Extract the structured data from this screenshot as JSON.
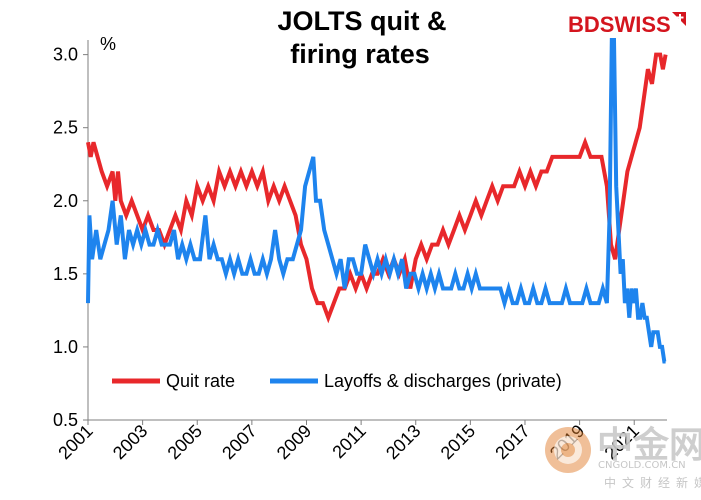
{
  "chart_data": {
    "type": "line",
    "title": [
      "JOLTS quit &",
      "firing rates"
    ],
    "ylabel": "%",
    "xlabel": "",
    "ylim": [
      0.5,
      3.1
    ],
    "xlim": [
      2001,
      2022.2
    ],
    "yticks": [
      {
        "value": 0.5,
        "label": "0.5"
      },
      {
        "value": 1.0,
        "label": "1.0"
      },
      {
        "value": 1.5,
        "label": "1.5"
      },
      {
        "value": 2.0,
        "label": "2.0"
      },
      {
        "value": 2.5,
        "label": "2.5"
      },
      {
        "value": 3.0,
        "label": "3.0"
      }
    ],
    "xticks": [
      {
        "value": 2001,
        "label": "2001"
      },
      {
        "value": 2003,
        "label": "2003"
      },
      {
        "value": 2005,
        "label": "2005"
      },
      {
        "value": 2007,
        "label": "2007"
      },
      {
        "value": 2009,
        "label": "2009"
      },
      {
        "value": 2011,
        "label": "2011"
      },
      {
        "value": 2013,
        "label": "2013"
      },
      {
        "value": 2015,
        "label": "2015"
      },
      {
        "value": 2017,
        "label": "2017"
      },
      {
        "value": 2019,
        "label": "2019"
      },
      {
        "value": 2021,
        "label": "2021"
      }
    ],
    "grid": false,
    "legend_position": "bottom",
    "series": [
      {
        "name": "Quit rate",
        "color": "#e8282b",
        "points": [
          [
            2001.0,
            2.4
          ],
          [
            2001.1,
            2.3
          ],
          [
            2001.2,
            2.4
          ],
          [
            2001.35,
            2.3
          ],
          [
            2001.5,
            2.2
          ],
          [
            2001.7,
            2.1
          ],
          [
            2001.9,
            2.2
          ],
          [
            2002.0,
            2.0
          ],
          [
            2002.1,
            2.2
          ],
          [
            2002.2,
            2.0
          ],
          [
            2002.4,
            1.9
          ],
          [
            2002.6,
            2.0
          ],
          [
            2002.8,
            1.9
          ],
          [
            2003.0,
            1.8
          ],
          [
            2003.2,
            1.9
          ],
          [
            2003.4,
            1.8
          ],
          [
            2003.6,
            1.8
          ],
          [
            2003.8,
            1.7
          ],
          [
            2004.0,
            1.8
          ],
          [
            2004.2,
            1.9
          ],
          [
            2004.4,
            1.8
          ],
          [
            2004.6,
            2.0
          ],
          [
            2004.8,
            1.9
          ],
          [
            2005.0,
            2.1
          ],
          [
            2005.2,
            2.0
          ],
          [
            2005.4,
            2.1
          ],
          [
            2005.6,
            2.0
          ],
          [
            2005.8,
            2.2
          ],
          [
            2006.0,
            2.1
          ],
          [
            2006.2,
            2.2
          ],
          [
            2006.4,
            2.1
          ],
          [
            2006.6,
            2.2
          ],
          [
            2006.8,
            2.1
          ],
          [
            2007.0,
            2.2
          ],
          [
            2007.2,
            2.1
          ],
          [
            2007.4,
            2.2
          ],
          [
            2007.6,
            2.0
          ],
          [
            2007.8,
            2.1
          ],
          [
            2008.0,
            2.0
          ],
          [
            2008.2,
            2.1
          ],
          [
            2008.4,
            2.0
          ],
          [
            2008.6,
            1.9
          ],
          [
            2008.8,
            1.7
          ],
          [
            2009.0,
            1.6
          ],
          [
            2009.2,
            1.4
          ],
          [
            2009.4,
            1.3
          ],
          [
            2009.6,
            1.3
          ],
          [
            2009.8,
            1.2
          ],
          [
            2010.0,
            1.3
          ],
          [
            2010.2,
            1.4
          ],
          [
            2010.4,
            1.4
          ],
          [
            2010.6,
            1.5
          ],
          [
            2010.8,
            1.4
          ],
          [
            2011.0,
            1.5
          ],
          [
            2011.2,
            1.4
          ],
          [
            2011.4,
            1.5
          ],
          [
            2011.6,
            1.5
          ],
          [
            2011.8,
            1.6
          ],
          [
            2012.0,
            1.5
          ],
          [
            2012.2,
            1.6
          ],
          [
            2012.4,
            1.5
          ],
          [
            2012.6,
            1.6
          ],
          [
            2012.8,
            1.4
          ],
          [
            2013.0,
            1.6
          ],
          [
            2013.2,
            1.7
          ],
          [
            2013.4,
            1.6
          ],
          [
            2013.6,
            1.7
          ],
          [
            2013.8,
            1.7
          ],
          [
            2014.0,
            1.8
          ],
          [
            2014.2,
            1.7
          ],
          [
            2014.4,
            1.8
          ],
          [
            2014.6,
            1.9
          ],
          [
            2014.8,
            1.8
          ],
          [
            2015.0,
            1.9
          ],
          [
            2015.2,
            2.0
          ],
          [
            2015.4,
            1.9
          ],
          [
            2015.6,
            2.0
          ],
          [
            2015.8,
            2.1
          ],
          [
            2016.0,
            2.0
          ],
          [
            2016.2,
            2.1
          ],
          [
            2016.4,
            2.1
          ],
          [
            2016.6,
            2.1
          ],
          [
            2016.8,
            2.2
          ],
          [
            2017.0,
            2.1
          ],
          [
            2017.2,
            2.2
          ],
          [
            2017.4,
            2.1
          ],
          [
            2017.6,
            2.2
          ],
          [
            2017.8,
            2.2
          ],
          [
            2018.0,
            2.3
          ],
          [
            2018.2,
            2.3
          ],
          [
            2018.4,
            2.3
          ],
          [
            2018.6,
            2.3
          ],
          [
            2018.8,
            2.3
          ],
          [
            2019.0,
            2.3
          ],
          [
            2019.2,
            2.4
          ],
          [
            2019.4,
            2.3
          ],
          [
            2019.6,
            2.3
          ],
          [
            2019.8,
            2.3
          ],
          [
            2020.0,
            2.1
          ],
          [
            2020.15,
            1.7
          ],
          [
            2020.3,
            1.6
          ],
          [
            2020.45,
            1.8
          ],
          [
            2020.6,
            2.0
          ],
          [
            2020.75,
            2.2
          ],
          [
            2020.9,
            2.3
          ],
          [
            2021.05,
            2.4
          ],
          [
            2021.2,
            2.5
          ],
          [
            2021.35,
            2.7
          ],
          [
            2021.5,
            2.9
          ],
          [
            2021.65,
            2.8
          ],
          [
            2021.8,
            3.0
          ],
          [
            2021.95,
            3.0
          ],
          [
            2022.05,
            2.9
          ],
          [
            2022.15,
            3.0
          ]
        ]
      },
      {
        "name": "Layoffs & discharges (private)",
        "color": "#1e84ee",
        "points": [
          [
            2001.0,
            1.3
          ],
          [
            2001.05,
            1.9
          ],
          [
            2001.15,
            1.6
          ],
          [
            2001.3,
            1.8
          ],
          [
            2001.45,
            1.6
          ],
          [
            2001.6,
            1.7
          ],
          [
            2001.75,
            1.8
          ],
          [
            2001.9,
            2.0
          ],
          [
            2002.05,
            1.7
          ],
          [
            2002.2,
            1.9
          ],
          [
            2002.35,
            1.6
          ],
          [
            2002.5,
            1.8
          ],
          [
            2002.65,
            1.7
          ],
          [
            2002.8,
            1.8
          ],
          [
            2002.95,
            1.7
          ],
          [
            2003.1,
            1.8
          ],
          [
            2003.25,
            1.7
          ],
          [
            2003.4,
            1.7
          ],
          [
            2003.55,
            1.8
          ],
          [
            2003.7,
            1.7
          ],
          [
            2003.85,
            1.7
          ],
          [
            2004.0,
            1.7
          ],
          [
            2004.15,
            1.8
          ],
          [
            2004.3,
            1.6
          ],
          [
            2004.45,
            1.7
          ],
          [
            2004.6,
            1.6
          ],
          [
            2004.75,
            1.7
          ],
          [
            2004.9,
            1.6
          ],
          [
            2005.1,
            1.6
          ],
          [
            2005.3,
            1.9
          ],
          [
            2005.45,
            1.6
          ],
          [
            2005.6,
            1.7
          ],
          [
            2005.75,
            1.6
          ],
          [
            2005.9,
            1.6
          ],
          [
            2006.05,
            1.5
          ],
          [
            2006.2,
            1.6
          ],
          [
            2006.35,
            1.5
          ],
          [
            2006.5,
            1.6
          ],
          [
            2006.65,
            1.5
          ],
          [
            2006.8,
            1.5
          ],
          [
            2006.95,
            1.6
          ],
          [
            2007.1,
            1.5
          ],
          [
            2007.25,
            1.5
          ],
          [
            2007.4,
            1.6
          ],
          [
            2007.55,
            1.5
          ],
          [
            2007.7,
            1.6
          ],
          [
            2007.85,
            1.8
          ],
          [
            2008.0,
            1.6
          ],
          [
            2008.15,
            1.5
          ],
          [
            2008.3,
            1.6
          ],
          [
            2008.5,
            1.6
          ],
          [
            2008.65,
            1.7
          ],
          [
            2008.8,
            1.8
          ],
          [
            2008.95,
            2.1
          ],
          [
            2009.1,
            2.2
          ],
          [
            2009.25,
            2.3
          ],
          [
            2009.35,
            2.0
          ],
          [
            2009.5,
            2.0
          ],
          [
            2009.65,
            1.8
          ],
          [
            2009.8,
            1.7
          ],
          [
            2009.95,
            1.6
          ],
          [
            2010.1,
            1.5
          ],
          [
            2010.25,
            1.6
          ],
          [
            2010.4,
            1.4
          ],
          [
            2010.55,
            1.6
          ],
          [
            2010.7,
            1.6
          ],
          [
            2010.85,
            1.5
          ],
          [
            2011.0,
            1.5
          ],
          [
            2011.15,
            1.7
          ],
          [
            2011.3,
            1.6
          ],
          [
            2011.45,
            1.5
          ],
          [
            2011.6,
            1.6
          ],
          [
            2011.75,
            1.5
          ],
          [
            2011.9,
            1.6
          ],
          [
            2012.05,
            1.5
          ],
          [
            2012.2,
            1.6
          ],
          [
            2012.35,
            1.5
          ],
          [
            2012.5,
            1.6
          ],
          [
            2012.65,
            1.4
          ],
          [
            2012.8,
            1.5
          ],
          [
            2012.95,
            1.5
          ],
          [
            2013.1,
            1.4
          ],
          [
            2013.25,
            1.5
          ],
          [
            2013.4,
            1.4
          ],
          [
            2013.55,
            1.5
          ],
          [
            2013.7,
            1.4
          ],
          [
            2013.85,
            1.5
          ],
          [
            2014.0,
            1.4
          ],
          [
            2014.15,
            1.4
          ],
          [
            2014.3,
            1.4
          ],
          [
            2014.45,
            1.5
          ],
          [
            2014.6,
            1.4
          ],
          [
            2014.75,
            1.4
          ],
          [
            2014.9,
            1.5
          ],
          [
            2015.05,
            1.4
          ],
          [
            2015.2,
            1.5
          ],
          [
            2015.35,
            1.4
          ],
          [
            2015.5,
            1.4
          ],
          [
            2015.65,
            1.4
          ],
          [
            2015.8,
            1.4
          ],
          [
            2015.95,
            1.4
          ],
          [
            2016.1,
            1.4
          ],
          [
            2016.25,
            1.3
          ],
          [
            2016.4,
            1.4
          ],
          [
            2016.55,
            1.3
          ],
          [
            2016.7,
            1.3
          ],
          [
            2016.85,
            1.4
          ],
          [
            2017.0,
            1.3
          ],
          [
            2017.15,
            1.3
          ],
          [
            2017.3,
            1.4
          ],
          [
            2017.45,
            1.3
          ],
          [
            2017.6,
            1.3
          ],
          [
            2017.75,
            1.4
          ],
          [
            2017.9,
            1.3
          ],
          [
            2018.05,
            1.3
          ],
          [
            2018.2,
            1.3
          ],
          [
            2018.35,
            1.3
          ],
          [
            2018.5,
            1.4
          ],
          [
            2018.65,
            1.3
          ],
          [
            2018.8,
            1.3
          ],
          [
            2018.95,
            1.3
          ],
          [
            2019.1,
            1.3
          ],
          [
            2019.25,
            1.4
          ],
          [
            2019.4,
            1.3
          ],
          [
            2019.55,
            1.3
          ],
          [
            2019.7,
            1.3
          ],
          [
            2019.85,
            1.4
          ],
          [
            2020.0,
            1.3
          ],
          [
            2020.1,
            1.9
          ],
          [
            2020.18,
            3.1
          ],
          [
            2020.26,
            3.1
          ],
          [
            2020.34,
            2.1
          ],
          [
            2020.42,
            1.8
          ],
          [
            2020.5,
            1.5
          ],
          [
            2020.58,
            1.6
          ],
          [
            2020.66,
            1.3
          ],
          [
            2020.74,
            1.4
          ],
          [
            2020.82,
            1.2
          ],
          [
            2020.9,
            1.4
          ],
          [
            2020.98,
            1.3
          ],
          [
            2021.06,
            1.4
          ],
          [
            2021.14,
            1.2
          ],
          [
            2021.22,
            1.2
          ],
          [
            2021.3,
            1.3
          ],
          [
            2021.38,
            1.2
          ],
          [
            2021.46,
            1.2
          ],
          [
            2021.54,
            1.1
          ],
          [
            2021.62,
            1.0
          ],
          [
            2021.7,
            1.1
          ],
          [
            2021.78,
            1.1
          ],
          [
            2021.86,
            1.1
          ],
          [
            2021.94,
            1.0
          ],
          [
            2022.02,
            1.0
          ],
          [
            2022.1,
            0.9
          ],
          [
            2022.15,
            0.9
          ]
        ]
      }
    ]
  },
  "branding": {
    "logo_text": "BDSWISS",
    "logo_bd_color": "#d4151e",
    "logo_swiss_color": "#d4151e"
  },
  "watermark": {
    "cn_text": "中金网",
    "url_text": "CNGOLD.COM.CN",
    "sub_text": "中文财经新媒体"
  }
}
